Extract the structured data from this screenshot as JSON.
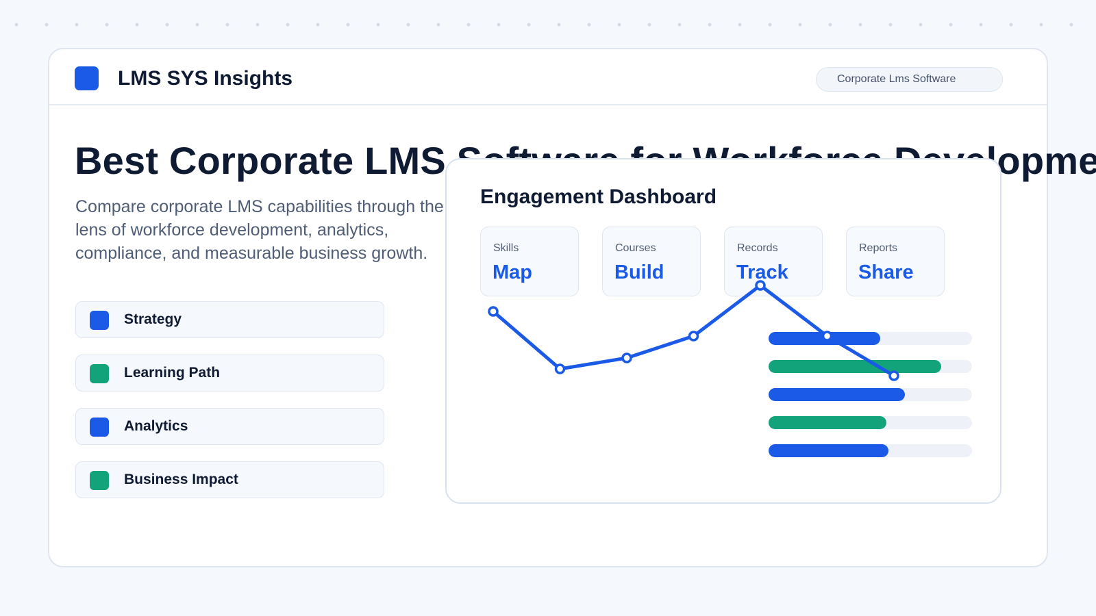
{
  "header": {
    "brand": "LMS SYS Insights",
    "tag": "Corporate Lms Software"
  },
  "hero": {
    "title": "Best Corporate LMS Software for Workforce Development",
    "description": "Compare corporate LMS capabilities through the lens of workforce development, analytics, compliance, and measurable business growth."
  },
  "features": [
    {
      "label": "Strategy",
      "color": "#1a5ae6"
    },
    {
      "label": "Learning Path",
      "color": "#12a37a"
    },
    {
      "label": "Analytics",
      "color": "#1a5ae6"
    },
    {
      "label": "Business Impact",
      "color": "#12a37a"
    }
  ],
  "dashboard": {
    "title": "Engagement Dashboard",
    "metrics": [
      {
        "label": "Skills",
        "value": "Map"
      },
      {
        "label": "Courses",
        "value": "Build"
      },
      {
        "label": "Records",
        "value": "Track"
      },
      {
        "label": "Reports",
        "value": "Share"
      }
    ]
  },
  "chart_data": [
    {
      "type": "line",
      "color": "#1a5ae6",
      "series": [
        {
          "values": [
            74,
            32,
            40,
            56,
            93,
            56,
            27
          ]
        }
      ],
      "ylim": [
        0,
        100
      ]
    },
    {
      "type": "bar",
      "orientation": "horizontal",
      "series": [
        {
          "values": [
            55,
            85,
            67,
            58,
            59
          ]
        }
      ],
      "colors": [
        "#1a5ae6",
        "#12a37a",
        "#1a5ae6",
        "#12a37a",
        "#1a5ae6"
      ],
      "xlim": [
        0,
        100
      ]
    }
  ],
  "colors": {
    "accent_blue": "#1a5ae6",
    "accent_green": "#12a37a"
  }
}
